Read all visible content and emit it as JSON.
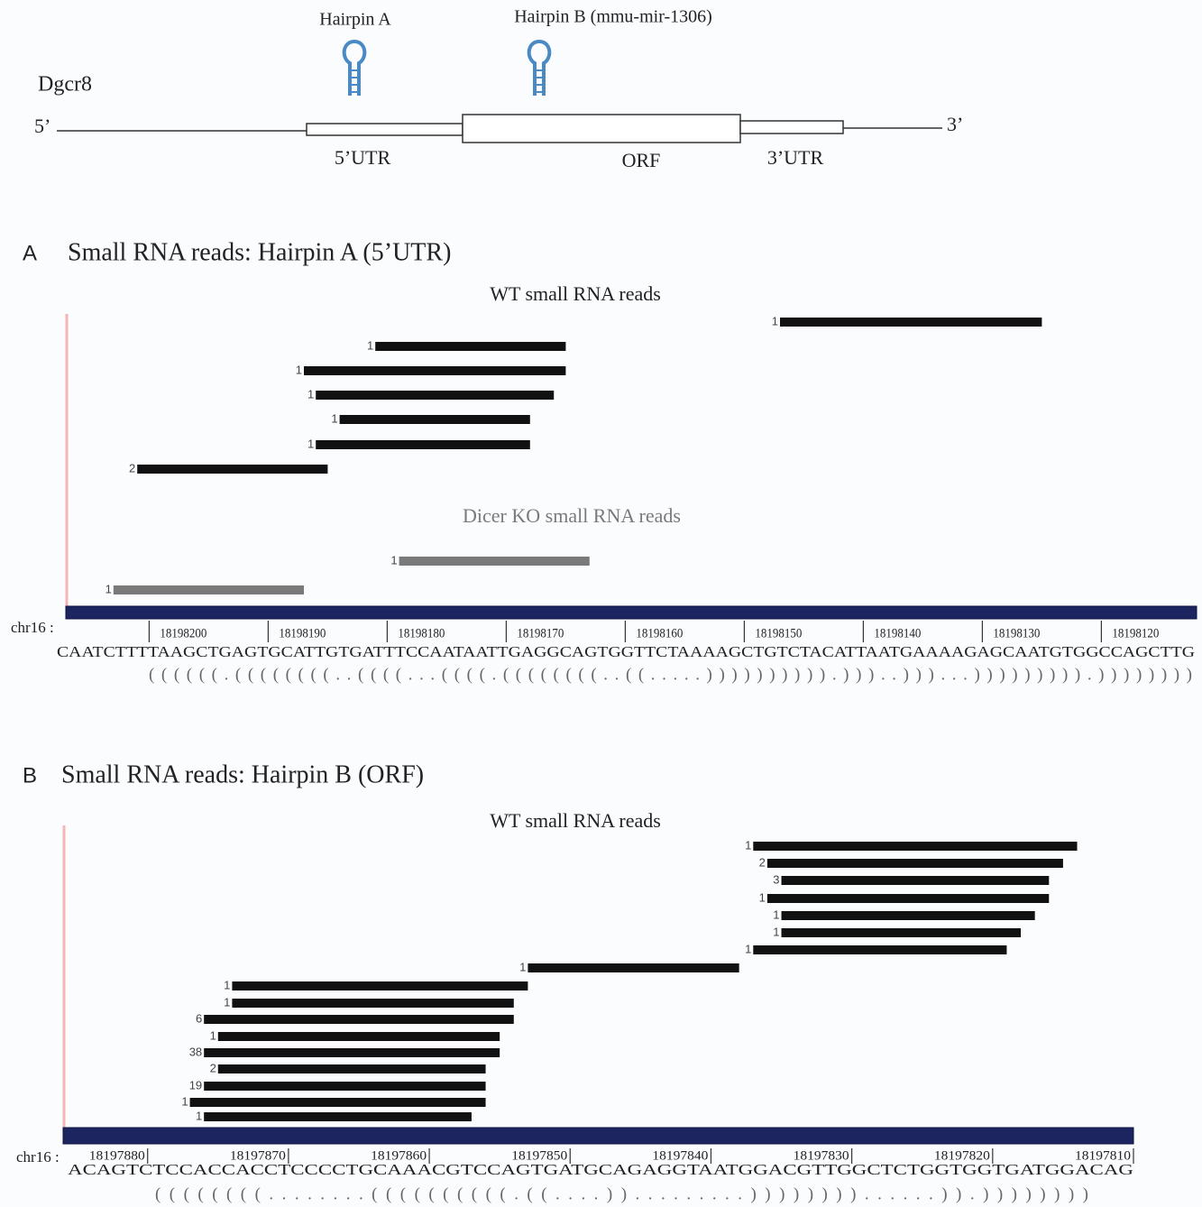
{
  "gene": {
    "name": "Dgcr8",
    "five_prime": "5’",
    "three_prime": "3’",
    "regions": [
      "5’UTR",
      "ORF",
      "3’UTR"
    ],
    "hairpins": [
      "Hairpin A",
      "Hairpin B (mmu-mir-1306)"
    ]
  },
  "panels": [
    {
      "letter": "A",
      "title": "Small RNA reads: Hairpin A (5’UTR)",
      "groups": [
        {
          "label": "WT small RNA reads",
          "color": "#111111",
          "reads": [
            {
              "count": 1,
              "start": 18198147,
              "end": 18198125
            },
            {
              "count": 1,
              "start": 18198181,
              "end": 18198165
            },
            {
              "count": 1,
              "start": 18198187,
              "end": 18198165
            },
            {
              "count": 1,
              "start": 18198186,
              "end": 18198166
            },
            {
              "count": 1,
              "start": 18198184,
              "end": 18198168
            },
            {
              "count": 1,
              "start": 18198186,
              "end": 18198168
            },
            {
              "count": 2,
              "start": 18198201,
              "end": 18198185
            }
          ]
        },
        {
          "label": "Dicer KO small RNA reads",
          "color": "#7a7a7a",
          "reads": [
            {
              "count": 1,
              "start": 18198179,
              "end": 18198163
            },
            {
              "count": 1,
              "start": 18198203,
              "end": 18198187
            }
          ]
        }
      ],
      "chromosome": "chr16 :",
      "xlim": [
        18198207,
        18198112
      ],
      "xticks": [
        18198200,
        18198190,
        18198180,
        18198170,
        18198160,
        18198150,
        18198140,
        18198130,
        18198120
      ],
      "sequence": "CAATCTTTTAAGCTGAGTGCATTGTGATTTCCAATAATTGAGGCAGTGGTTCTAAAAGCTGTCTACATTAATGAAAAGAGCAATGTGGCCAGCTTG",
      "structure": "((((((.((((((((..((((...((((.((((((((..((.....)))))))))).)))..)))...))))))))).))))))))"
    },
    {
      "letter": "B",
      "title": "Small RNA reads: Hairpin B (ORF)",
      "groups": [
        {
          "label": "WT small RNA reads",
          "color": "#111111",
          "reads": [
            {
              "count": 1,
              "start": 18197837,
              "end": 18197814
            },
            {
              "count": 2,
              "start": 18197836,
              "end": 18197815
            },
            {
              "count": 3,
              "start": 18197835,
              "end": 18197816
            },
            {
              "count": 1,
              "start": 18197836,
              "end": 18197816
            },
            {
              "count": 1,
              "start": 18197835,
              "end": 18197817
            },
            {
              "count": 1,
              "start": 18197835,
              "end": 18197818
            },
            {
              "count": 1,
              "start": 18197837,
              "end": 18197819
            },
            {
              "count": 1,
              "start": 18197853,
              "end": 18197838
            },
            {
              "count": 1,
              "start": 18197874,
              "end": 18197853
            },
            {
              "count": 1,
              "start": 18197874,
              "end": 18197854
            },
            {
              "count": 6,
              "start": 18197876,
              "end": 18197854
            },
            {
              "count": 1,
              "start": 18197875,
              "end": 18197855
            },
            {
              "count": 38,
              "start": 18197876,
              "end": 18197855
            },
            {
              "count": 2,
              "start": 18197875,
              "end": 18197856
            },
            {
              "count": 19,
              "start": 18197876,
              "end": 18197856
            },
            {
              "count": 1,
              "start": 18197877,
              "end": 18197856
            },
            {
              "count": 1,
              "start": 18197876,
              "end": 18197857
            }
          ]
        }
      ],
      "chromosome": "chr16 :",
      "xlim": [
        18197886,
        18197810
      ],
      "xticks": [
        18197880,
        18197870,
        18197860,
        18197850,
        18197840,
        18197830,
        18197820,
        18197810
      ],
      "sequence": "ACAGTCTCCACCACCTCCCCTGCAAACGTCCAGTGATGCAGAGGTAATGGACGTTGGCTCTGGTGGTGATGGACAG",
      "structure": "((((((((........((((((((((.((....)).........))))))))......)).))))))))"
    }
  ]
}
